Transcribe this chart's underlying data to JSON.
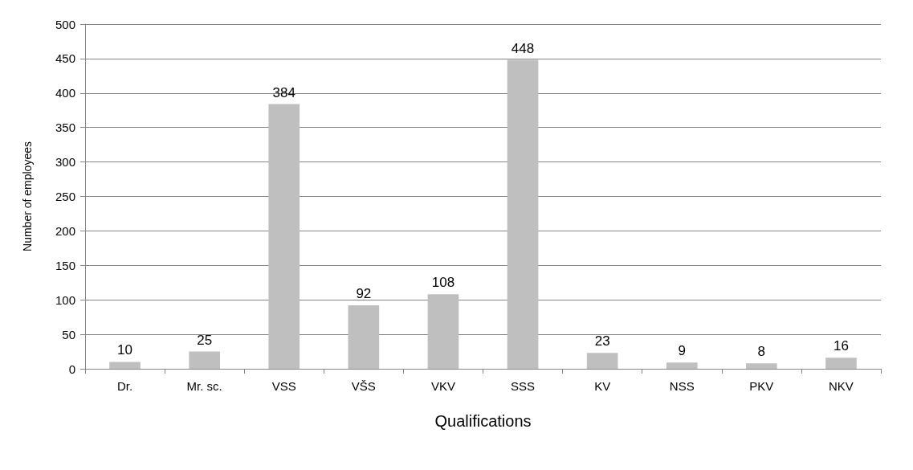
{
  "chart_data": {
    "type": "bar",
    "xlabel": "Qualifications",
    "ylabel": "Number of employees",
    "categories": [
      "Dr.",
      "Mr. sc.",
      "VSS",
      "VŠS",
      "VKV",
      "SSS",
      "KV",
      "NSS",
      "PKV",
      "NKV"
    ],
    "values": [
      10,
      25,
      384,
      92,
      108,
      448,
      23,
      9,
      8,
      16
    ],
    "color": "#bfbfbf",
    "ylim": [
      0,
      500
    ],
    "yticks": [
      0,
      50,
      100,
      150,
      200,
      250,
      300,
      350,
      400,
      450,
      500
    ],
    "grid": "y",
    "data_labels": true
  }
}
